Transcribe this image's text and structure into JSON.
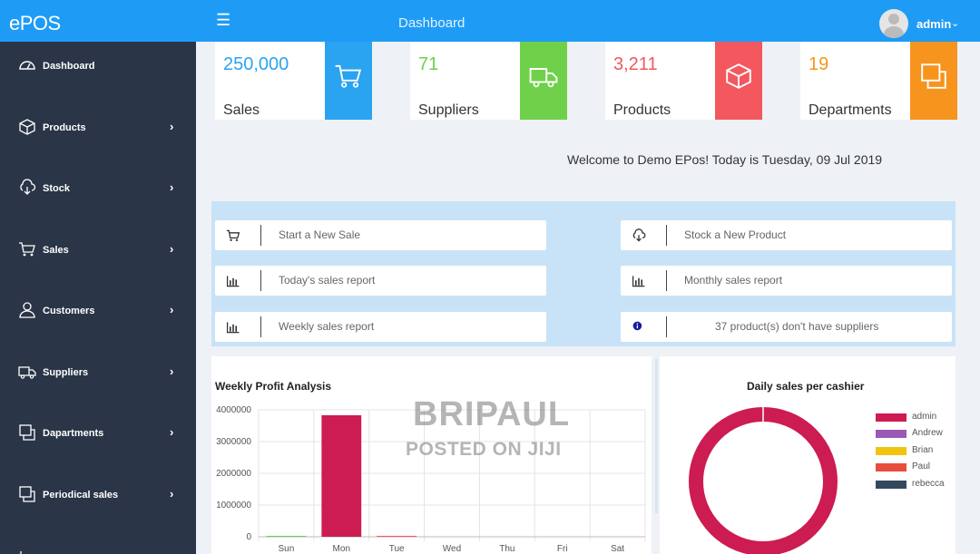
{
  "header": {
    "brand": "ePOS",
    "menu_icon": "hamburger-icon",
    "title": "Dashboard",
    "user": "admin"
  },
  "sidebar": {
    "items": [
      {
        "label": "Dashboard",
        "icon": "dashboard-icon",
        "arrow": ""
      },
      {
        "label": "Products",
        "icon": "box-icon",
        "arrow": "›"
      },
      {
        "label": "Stock",
        "icon": "cloud-download-icon",
        "arrow": "›"
      },
      {
        "label": "Sales",
        "icon": "cart-icon",
        "arrow": "›"
      },
      {
        "label": "Customers",
        "icon": "user-icon",
        "arrow": "›"
      },
      {
        "label": "Suppliers",
        "icon": "truck-icon",
        "arrow": "›"
      },
      {
        "label": "Dapartments",
        "icon": "squares-icon",
        "arrow": "›"
      },
      {
        "label": "Periodical sales",
        "icon": "squares-icon",
        "arrow": "›"
      }
    ]
  },
  "stats": [
    {
      "value": "250,000",
      "label": "Sales",
      "color": "#2aa3f0",
      "icon": "cart-icon"
    },
    {
      "value": "71",
      "label": "Suppliers",
      "color": "#6fd14a",
      "icon": "truck-icon"
    },
    {
      "value": "3,211",
      "label": "Products",
      "color": "#f2585e",
      "icon": "box-icon"
    },
    {
      "value": "19",
      "label": "Departments",
      "color": "#f7941d",
      "icon": "squares-icon"
    }
  ],
  "welcome": "Welcome to Demo EPos! Today is Tuesday, 09 Jul 2019",
  "quick_actions": [
    {
      "label": "Start a New Sale",
      "icon": "cart-icon"
    },
    {
      "label": "Stock a New Product",
      "icon": "cloud-download-icon"
    },
    {
      "label": "Today's sales report",
      "icon": "bar-chart-icon"
    },
    {
      "label": "Monthly sales report",
      "icon": "bar-chart-icon"
    },
    {
      "label": "Weekly sales report",
      "icon": "bar-chart-icon"
    },
    {
      "label": "37 product(s) don't have suppliers",
      "icon": "info-icon"
    }
  ],
  "watermark": {
    "line1": "BRIPAUL",
    "line2": "POSTED ON JIJI"
  },
  "chart_data": [
    {
      "type": "bar",
      "title": "Weekly Profit Analysis",
      "categories": [
        "Sun",
        "Mon",
        "Tue",
        "Wed",
        "Thu",
        "Fri",
        "Sat"
      ],
      "values": [
        30000,
        3830000,
        30000,
        0,
        0,
        0,
        0
      ],
      "bar_colors": [
        "#6fd14a",
        "#cc1c52",
        "#f2585e",
        "#cc1c52",
        "#cc1c52",
        "#cc1c52",
        "#cc1c52"
      ],
      "ylim": [
        0,
        4000000
      ],
      "yticks": [
        "0",
        "1000000",
        "2000000",
        "3000000",
        "4000000"
      ],
      "grid": true
    },
    {
      "type": "pie",
      "style": "doughnut",
      "title": "Daily sales per cashier",
      "labels": [
        "admin",
        "Andrew",
        "Brian",
        "Paul",
        "rebecca"
      ],
      "values": [
        100,
        0,
        0,
        0,
        0
      ],
      "colors": [
        "#cc1c52",
        "#9b59b6",
        "#f1c40f",
        "#e74c3c",
        "#34495e"
      ],
      "legend": "right"
    }
  ]
}
